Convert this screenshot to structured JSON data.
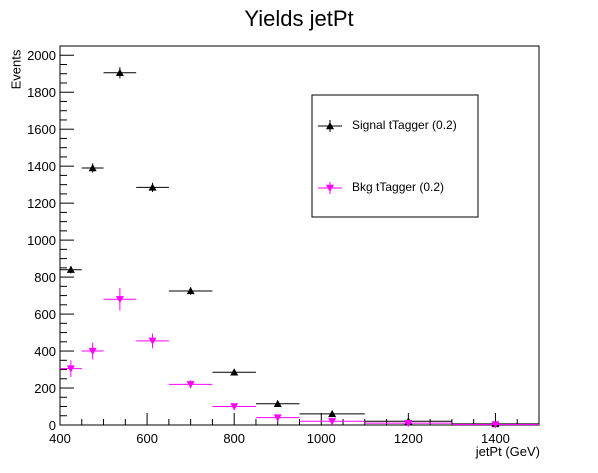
{
  "chart_data": {
    "type": "scatter",
    "title": "Yields jetPt",
    "xlabel": "jetPt (GeV)",
    "ylabel": "Events",
    "xlim": [
      400,
      1500
    ],
    "ylim": [
      0,
      2050
    ],
    "x_ticks": [
      400,
      600,
      800,
      1000,
      1200,
      1400
    ],
    "y_ticks": [
      0,
      200,
      400,
      600,
      800,
      1000,
      1200,
      1400,
      1600,
      1800,
      2000
    ],
    "legend_position": "top-right",
    "grid": false,
    "series": [
      {
        "name": "Signal tTagger (0.2)",
        "color": "#000000",
        "marker": "triangle-up",
        "points": [
          {
            "x": 425,
            "xlo": 400,
            "xhi": 450,
            "y": 840,
            "yerr": 20
          },
          {
            "x": 475,
            "xlo": 450,
            "xhi": 500,
            "y": 1390,
            "yerr": 25
          },
          {
            "x": 537.5,
            "xlo": 500,
            "xhi": 575,
            "y": 1905,
            "yerr": 30
          },
          {
            "x": 612.5,
            "xlo": 575,
            "xhi": 650,
            "y": 1285,
            "yerr": 25
          },
          {
            "x": 700,
            "xlo": 650,
            "xhi": 750,
            "y": 725,
            "yerr": 20
          },
          {
            "x": 800,
            "xlo": 750,
            "xhi": 850,
            "y": 285,
            "yerr": 12
          },
          {
            "x": 900,
            "xlo": 850,
            "xhi": 950,
            "y": 115,
            "yerr": 8
          },
          {
            "x": 1025,
            "xlo": 950,
            "xhi": 1100,
            "y": 60,
            "yerr": 6
          },
          {
            "x": 1200,
            "xlo": 1100,
            "xhi": 1300,
            "y": 20,
            "yerr": 4
          },
          {
            "x": 1400,
            "xlo": 1300,
            "xhi": 1500,
            "y": 6,
            "yerr": 2
          }
        ]
      },
      {
        "name": "Bkg tTagger (0.2)",
        "color": "#ff00ff",
        "marker": "triangle-down",
        "points": [
          {
            "x": 425,
            "xlo": 400,
            "xhi": 450,
            "y": 305,
            "yerr": 45
          },
          {
            "x": 475,
            "xlo": 450,
            "xhi": 500,
            "y": 400,
            "yerr": 45
          },
          {
            "x": 537.5,
            "xlo": 500,
            "xhi": 575,
            "y": 680,
            "yerr": 60
          },
          {
            "x": 612.5,
            "xlo": 575,
            "xhi": 650,
            "y": 455,
            "yerr": 40
          },
          {
            "x": 700,
            "xlo": 650,
            "xhi": 750,
            "y": 220,
            "yerr": 22
          },
          {
            "x": 800,
            "xlo": 750,
            "xhi": 850,
            "y": 100,
            "yerr": 12
          },
          {
            "x": 900,
            "xlo": 850,
            "xhi": 950,
            "y": 40,
            "yerr": 7
          },
          {
            "x": 1025,
            "xlo": 950,
            "xhi": 1100,
            "y": 20,
            "yerr": 5
          },
          {
            "x": 1200,
            "xlo": 1100,
            "xhi": 1300,
            "y": 10,
            "yerr": 4
          },
          {
            "x": 1400,
            "xlo": 1300,
            "xhi": 1500,
            "y": 3,
            "yerr": 2
          }
        ]
      }
    ]
  }
}
